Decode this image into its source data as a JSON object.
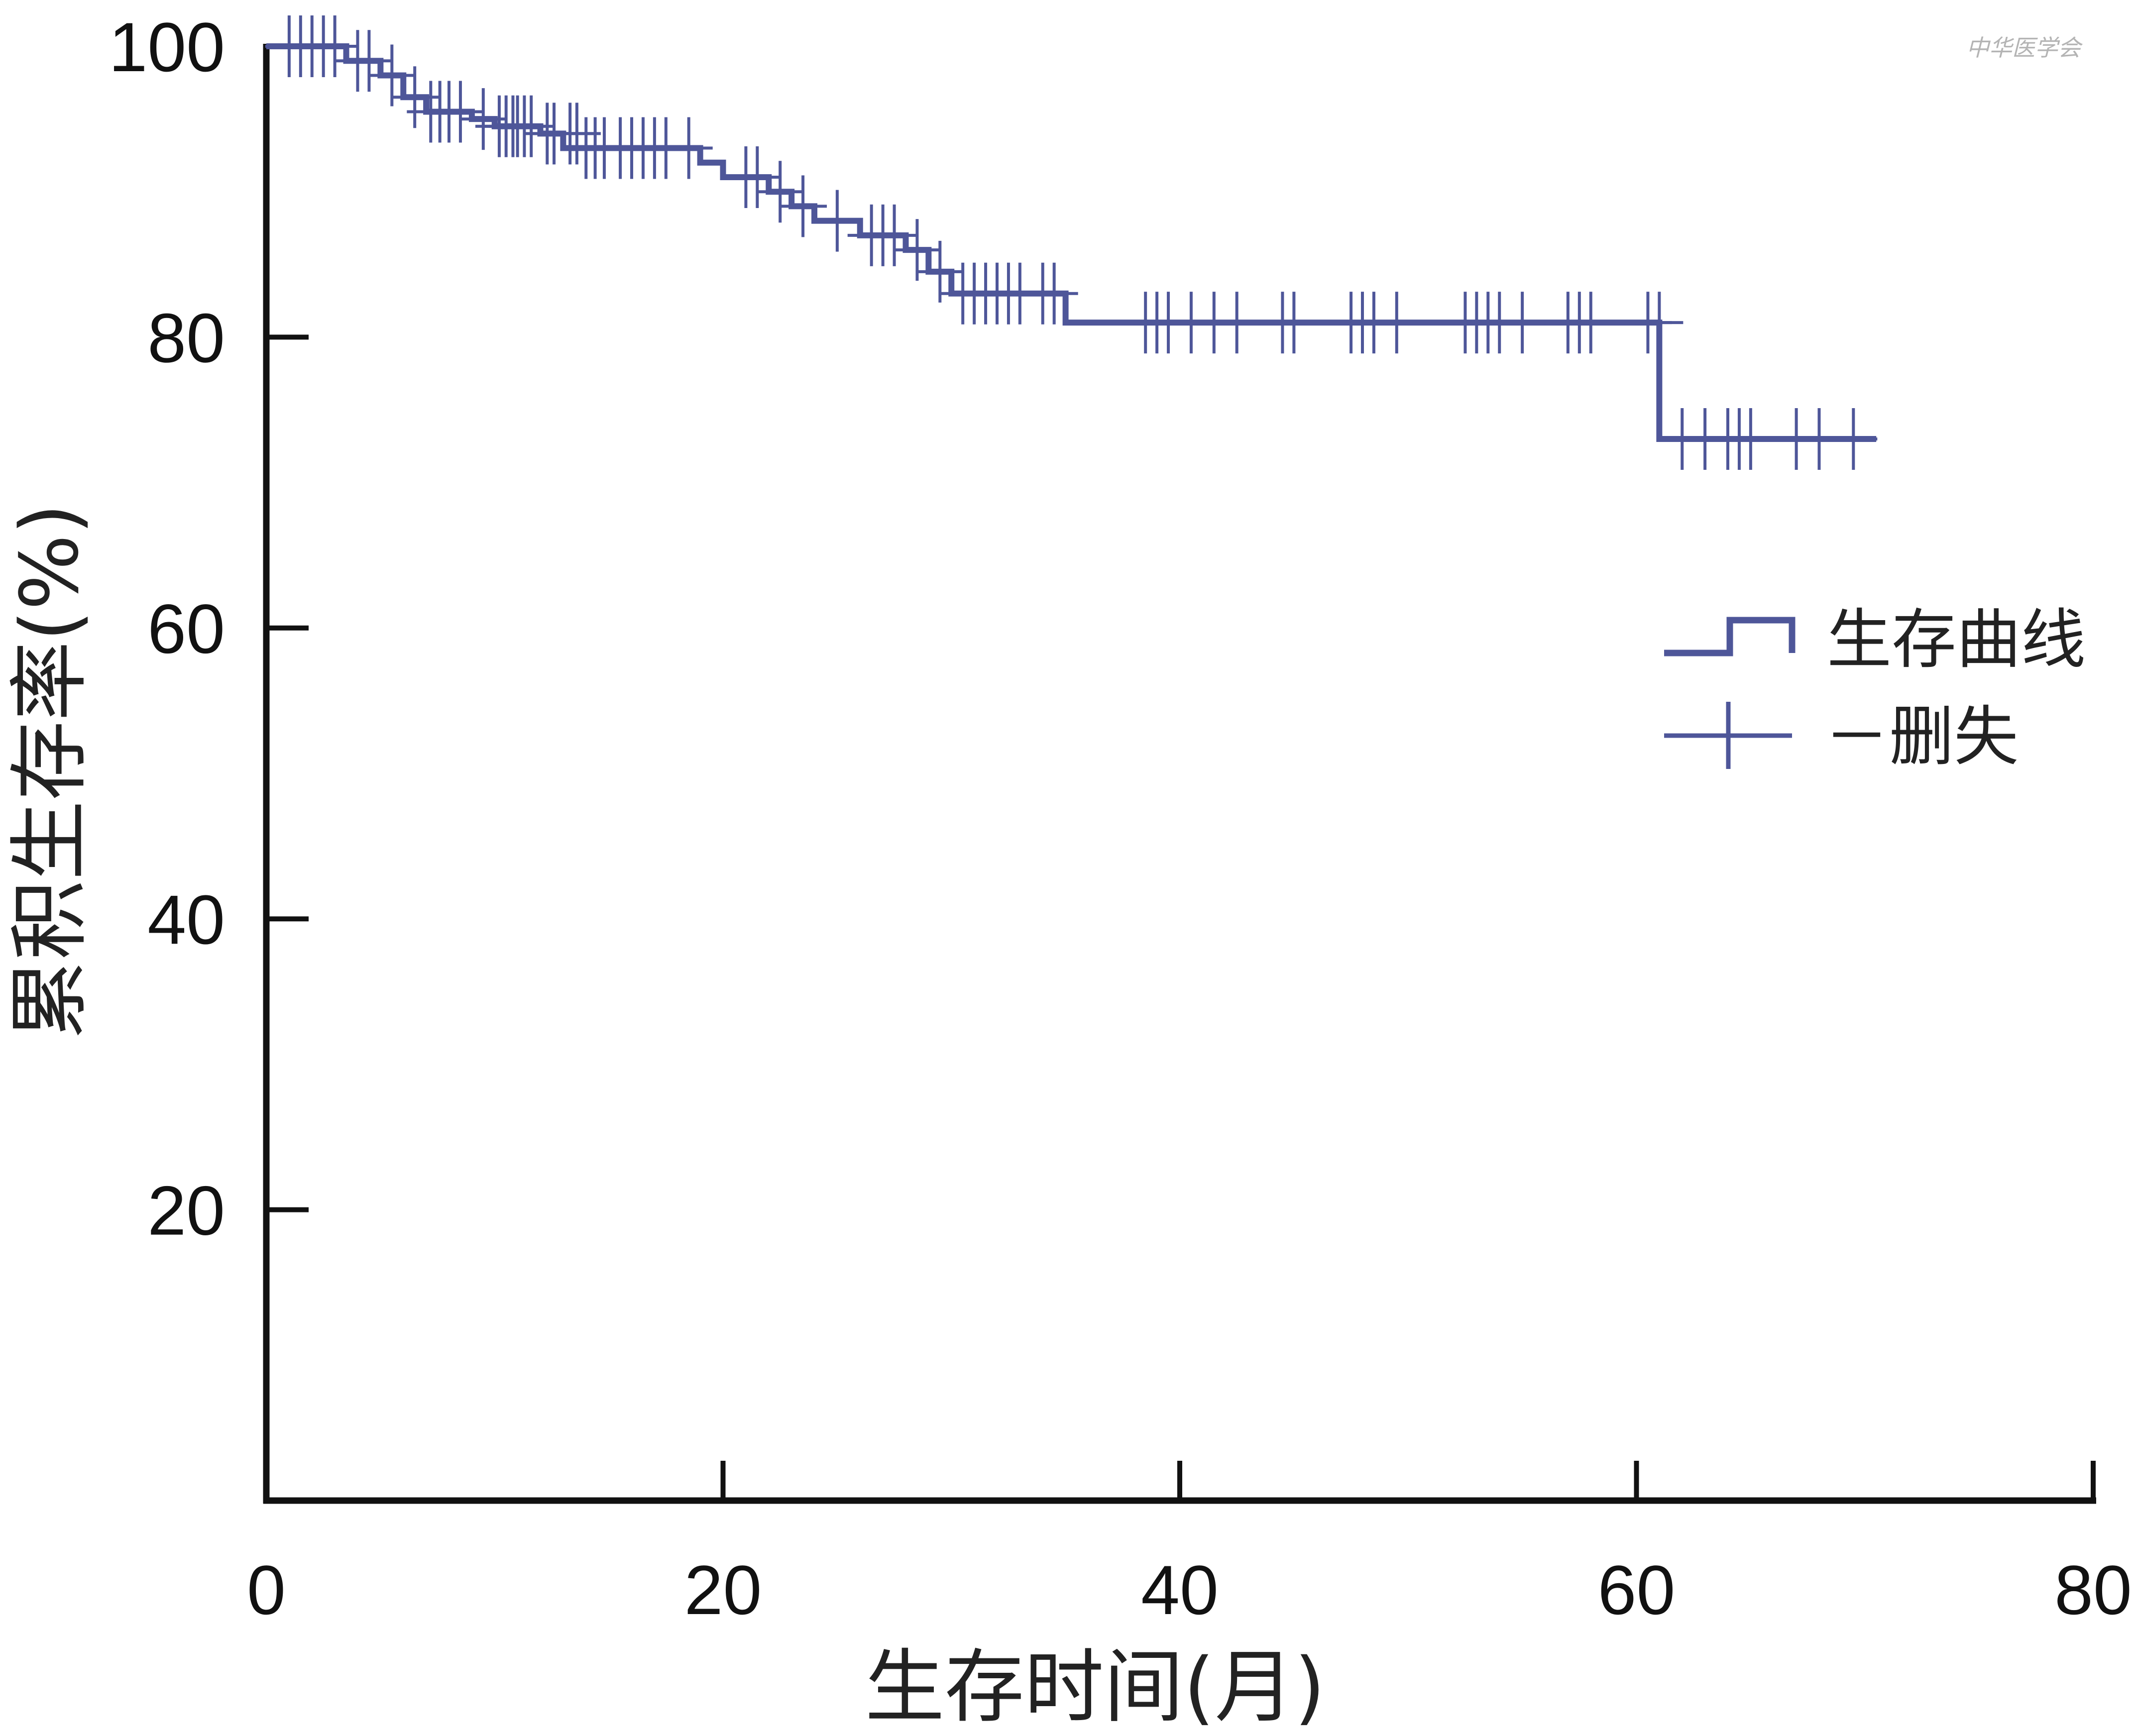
{
  "watermark": "中华医学会",
  "chart_data": {
    "type": "line",
    "subtype": "kaplan-meier survival curve",
    "title": "",
    "xlabel": "生存时间(月)",
    "ylabel": "累积生存率(%)",
    "xlim": [
      0,
      80
    ],
    "ylim": [
      0,
      100
    ],
    "xticks": [
      "0",
      "20",
      "40",
      "60",
      "80"
    ],
    "yticks": [
      "20",
      "40",
      "60",
      "80",
      "100"
    ],
    "color": "#4e5699",
    "grid": false,
    "legend_position": "right-middle",
    "series": [
      {
        "name": "生存曲线",
        "step": true,
        "x": [
          0,
          3.5,
          5,
          6,
          7,
          9,
          10,
          12,
          13,
          19,
          20,
          22,
          23,
          24,
          26,
          28,
          29,
          30,
          35,
          61,
          70.5
        ],
        "y": [
          100,
          99,
          98,
          96.5,
          95.5,
          95,
          94.5,
          94,
          93,
          92,
          91,
          90,
          89,
          88,
          87,
          86,
          84.5,
          83,
          81,
          73,
          73
        ]
      }
    ],
    "censor_marks": {
      "name": "删失",
      "x": [
        1,
        1.5,
        2,
        2.5,
        3,
        4,
        4.5,
        5.5,
        6.5,
        7.2,
        7.6,
        8,
        8.5,
        9.5,
        10.2,
        10.5,
        10.8,
        11,
        11.3,
        11.6,
        12.3,
        12.6,
        13.3,
        13.6,
        14,
        14.4,
        14.8,
        15.5,
        16,
        16.5,
        17,
        17.5,
        18.5,
        21,
        21.5,
        22.5,
        23.5,
        25,
        26.5,
        27,
        27.5,
        28.5,
        29.5,
        30.5,
        31,
        31.5,
        32,
        32.5,
        33,
        34,
        34.5,
        38.5,
        39,
        39.5,
        40.5,
        41.5,
        42.5,
        44.5,
        45,
        47.5,
        48,
        48.5,
        49.5,
        52.5,
        53,
        53.5,
        54,
        55,
        57,
        57.5,
        58,
        60.5,
        61,
        62,
        63,
        64,
        64.5,
        65,
        67,
        68,
        69.5
      ],
      "y": [
        100,
        100,
        100,
        100,
        100,
        99,
        99,
        98,
        96.5,
        95.5,
        95.5,
        95.5,
        95.5,
        95,
        94.5,
        94.5,
        94.5,
        94.5,
        94.5,
        94.5,
        94,
        94,
        94,
        94,
        93,
        93,
        93,
        93,
        93,
        93,
        93,
        93,
        93,
        91,
        91,
        90,
        89,
        88,
        87,
        87,
        87,
        86,
        84.5,
        83,
        83,
        83,
        83,
        83,
        83,
        83,
        83,
        81,
        81,
        81,
        81,
        81,
        81,
        81,
        81,
        81,
        81,
        81,
        81,
        81,
        81,
        81,
        81,
        81,
        81,
        81,
        81,
        81,
        81,
        73,
        73,
        73,
        73,
        73,
        73,
        73,
        73
      ]
    }
  },
  "legend": {
    "curve_label": "生存曲线",
    "censor_label": "－删失"
  }
}
